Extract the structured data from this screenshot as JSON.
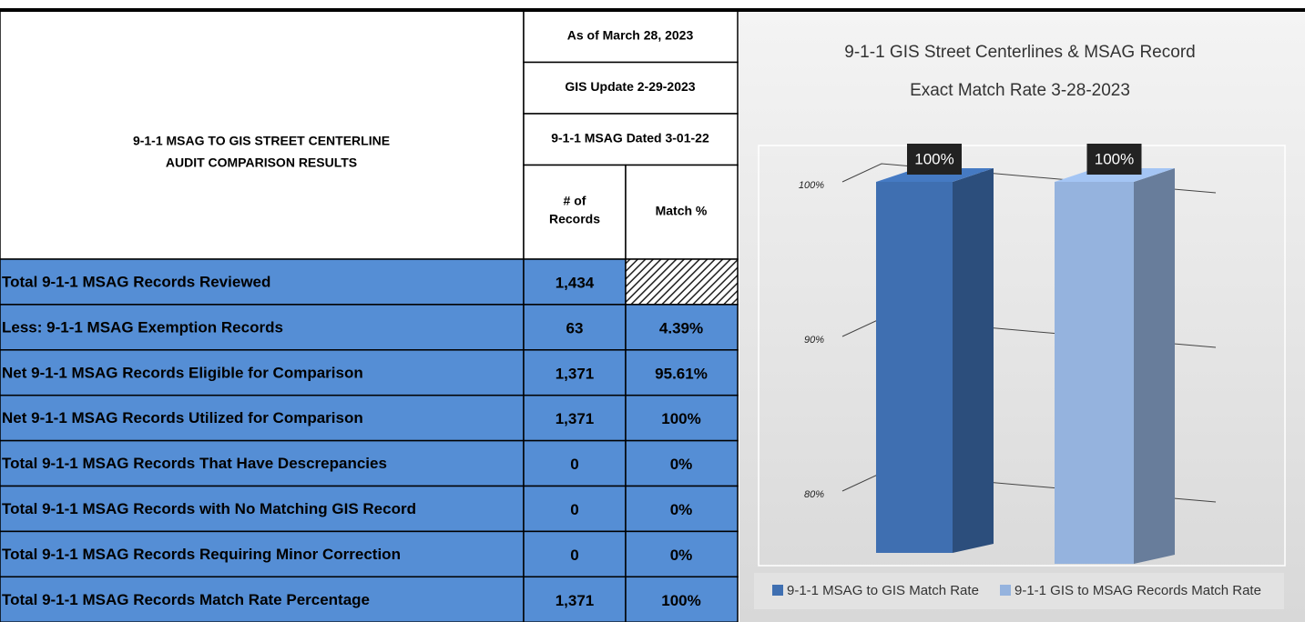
{
  "table": {
    "title": [
      "9-1-1 MSAG TO GIS STREET CENTERLINE",
      "AUDIT COMPARISON RESULTS"
    ],
    "header": [
      "As of March 28, 2023",
      "GIS Update 2-29-2023",
      "9-1-1 MSAG Dated 3-01-22"
    ],
    "columns": [
      [
        "# of",
        "Records"
      ],
      "Match %"
    ],
    "rows": [
      [
        "Total 9-1-1 MSAG Records Reviewed",
        "1,434",
        null
      ],
      [
        "Less:  9-1-1 MSAG Exemption Records",
        "63",
        "4.39%"
      ],
      [
        "Net 9-1-1 MSAG Records Eligible for Comparison",
        "1,371",
        "95.61%"
      ],
      [
        "Net 9-1-1 MSAG Records Utilized for Comparison",
        "1,371",
        "100%"
      ],
      [
        "Total 9-1-1 MSAG Records That Have Descrepancies",
        "0",
        "0%"
      ],
      [
        "Total 9-1-1 MSAG Records with No Matching GIS Record",
        "0",
        "0%"
      ],
      [
        "Total 9-1-1 MSAG Records Requiring Minor Correction",
        "0",
        "0%"
      ],
      [
        "Total 9-1-1 MSAG Records Match Rate Percentage",
        "1,371",
        "100%"
      ]
    ]
  },
  "chart_data": {
    "type": "bar3d",
    "title": [
      "9-1-1 GIS Street Centerlines & MSAG Record",
      "Exact Match Rate 3-28-2023"
    ],
    "series": [
      {
        "name": "9-1-1 MSAG to GIS Match Rate",
        "color": "#3f6fb1",
        "values": [
          100
        ],
        "value_labels": [
          "100%"
        ]
      },
      {
        "name": "9-1-1 GIS to MSAG Records Match Rate",
        "color": "#95b3de",
        "values": [
          100
        ],
        "value_labels": [
          "100%"
        ]
      }
    ],
    "ylim": [
      80,
      100
    ],
    "yticks": [
      {
        "value": 80,
        "label": "80%"
      },
      {
        "value": 90,
        "label": "90%"
      },
      {
        "value": 100,
        "label": "100%"
      }
    ],
    "grid": true,
    "legend": "bottom"
  }
}
